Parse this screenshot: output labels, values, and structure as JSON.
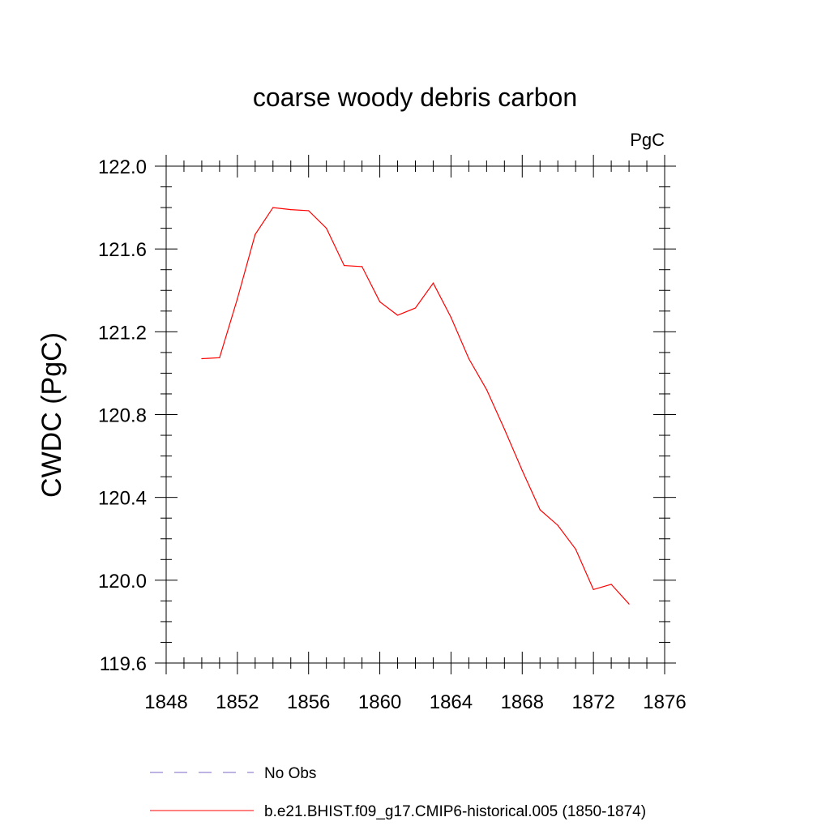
{
  "chart_data": {
    "type": "line",
    "title": "coarse woody debris carbon",
    "units_label": "PgC",
    "xlabel": "",
    "ylabel": "CWDC  (PgC)",
    "xlim": [
      1848,
      1876
    ],
    "ylim": [
      119.6,
      122.0
    ],
    "x_ticks": [
      "1848",
      "1852",
      "1856",
      "1860",
      "1864",
      "1868",
      "1872",
      "1876"
    ],
    "y_ticks": [
      "119.6",
      "120.0",
      "120.4",
      "120.8",
      "121.2",
      "121.6",
      "122.0"
    ],
    "x": [
      1850,
      1851,
      1852,
      1853,
      1854,
      1855,
      1856,
      1857,
      1858,
      1859,
      1860,
      1861,
      1862,
      1863,
      1864,
      1865,
      1866,
      1867,
      1868,
      1869,
      1870,
      1871,
      1872,
      1873,
      1874
    ],
    "series": [
      {
        "name": "b.e21.BHIST.f09_g17.CMIP6-historical.005 (1850-1874)",
        "color": "#ff0000",
        "style": "solid",
        "values": [
          121.07,
          121.075,
          121.36,
          121.67,
          121.8,
          121.79,
          121.785,
          121.7,
          121.52,
          121.515,
          121.345,
          121.28,
          121.315,
          121.435,
          121.27,
          121.07,
          120.92,
          120.73,
          120.53,
          120.34,
          120.265,
          120.15,
          119.955,
          119.98,
          119.885
        ]
      }
    ],
    "legend": [
      {
        "label": "No Obs",
        "color": "#7b68c8",
        "style": "dashed"
      },
      {
        "label": "b.e21.BHIST.f09_g17.CMIP6-historical.005 (1850-1874)",
        "color": "#ff0000",
        "style": "solid"
      }
    ],
    "legend_position": "bottom",
    "grid": false
  }
}
